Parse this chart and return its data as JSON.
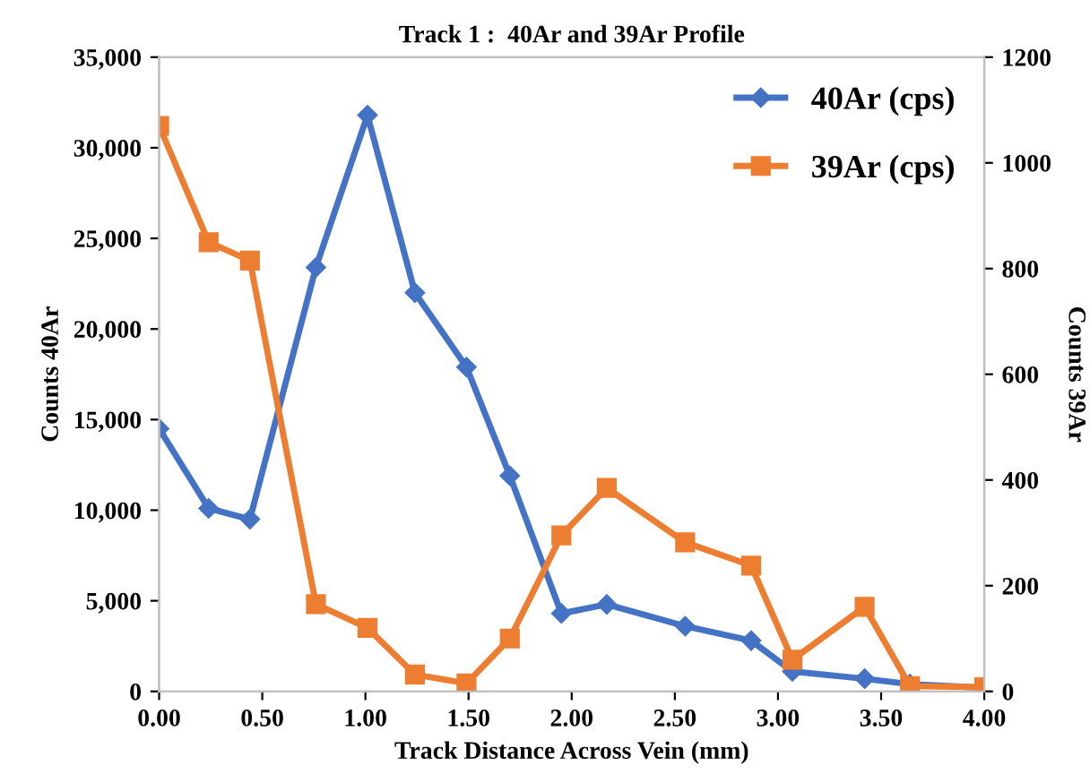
{
  "chart_data": {
    "type": "line",
    "title": "Track 1 :  40Ar and 39Ar Profile",
    "xlabel": "Track Distance Across Vein (mm)",
    "ylabel": "Counts 40Ar",
    "y2label": "Counts 39Ar",
    "x": [
      0,
      0.24,
      0.44,
      0.76,
      1.01,
      1.24,
      1.49,
      1.7,
      1.95,
      2.17,
      2.55,
      2.87,
      3.07,
      3.42,
      3.64,
      4.0
    ],
    "series": [
      {
        "name": "40Ar (cps)",
        "color": "#4472c4",
        "marker": "diamond",
        "axis": "y",
        "values": [
          14500,
          10100,
          9500,
          23400,
          31800,
          22000,
          17900,
          11900,
          4300,
          4800,
          3600,
          2800,
          1100,
          700,
          400,
          200
        ]
      },
      {
        "name": "39Ar (cps)",
        "color": "#ed7d31",
        "marker": "square",
        "axis": "y2",
        "values": [
          1070,
          850,
          815,
          165,
          120,
          32,
          15,
          100,
          295,
          385,
          282,
          238,
          60,
          160,
          10,
          8
        ]
      }
    ],
    "xlim": [
      0,
      4
    ],
    "xticks": [
      {
        "value": 0,
        "label": "0.00"
      },
      {
        "value": 0.5,
        "label": "0.50"
      },
      {
        "value": 1,
        "label": "1.00"
      },
      {
        "value": 1.5,
        "label": "1.50"
      },
      {
        "value": 2,
        "label": "2.00"
      },
      {
        "value": 2.5,
        "label": "2.50"
      },
      {
        "value": 3,
        "label": "3.00"
      },
      {
        "value": 3.5,
        "label": "3.50"
      },
      {
        "value": 4,
        "label": "4.00"
      }
    ],
    "ylim": [
      0,
      35000
    ],
    "yticks": [
      {
        "value": 0,
        "label": "0"
      },
      {
        "value": 5000,
        "label": "5,000"
      },
      {
        "value": 10000,
        "label": "10,000"
      },
      {
        "value": 15000,
        "label": "15,000"
      },
      {
        "value": 20000,
        "label": "20,000"
      },
      {
        "value": 25000,
        "label": "25,000"
      },
      {
        "value": 30000,
        "label": "30,000"
      },
      {
        "value": 35000,
        "label": "35,000"
      }
    ],
    "y2lim": [
      0,
      1200
    ],
    "y2ticks": [
      0,
      200,
      400,
      600,
      800,
      1000,
      1200
    ],
    "legend": "top right",
    "grid": false,
    "line_style": "solid"
  }
}
